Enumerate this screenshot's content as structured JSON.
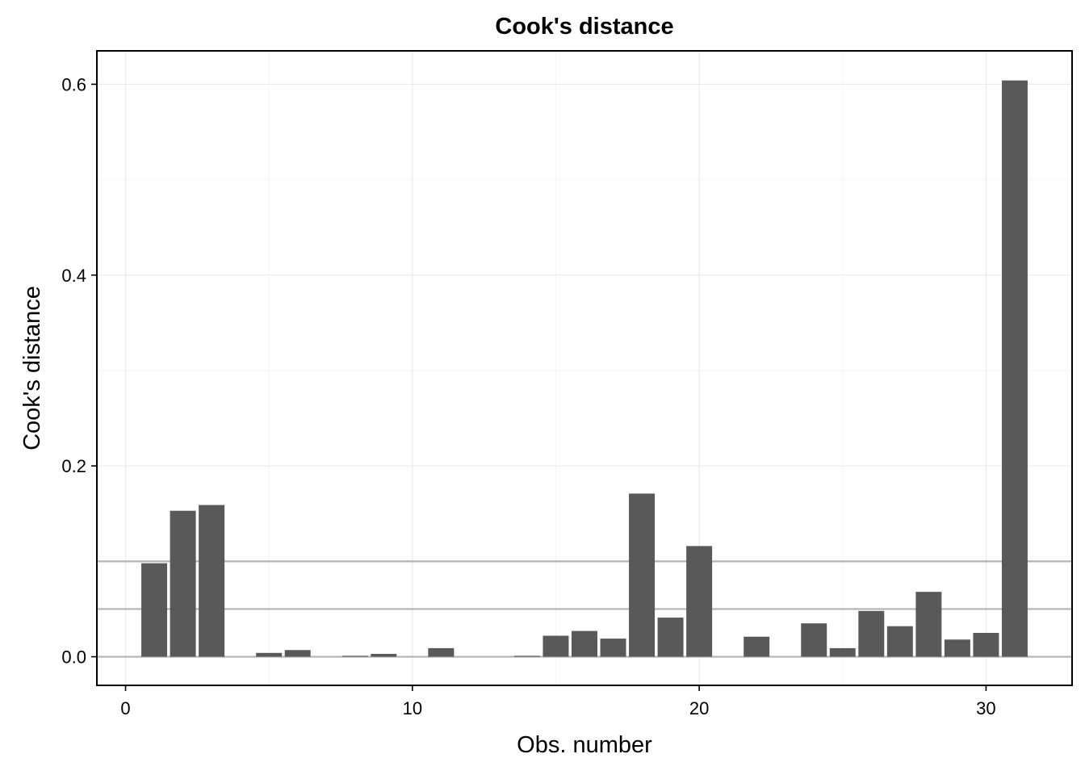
{
  "chart_data": {
    "type": "bar",
    "title": "Cook's distance",
    "xlabel": "Obs. number",
    "ylabel": "Cook's distance",
    "x": [
      1,
      2,
      3,
      4,
      5,
      6,
      7,
      8,
      9,
      10,
      11,
      12,
      13,
      14,
      15,
      16,
      17,
      18,
      19,
      20,
      21,
      22,
      23,
      24,
      25,
      26,
      27,
      28,
      29,
      30,
      31
    ],
    "values": [
      0.098,
      0.153,
      0.159,
      0.0,
      0.004,
      0.007,
      0.0,
      0.001,
      0.003,
      0.0,
      0.009,
      0.0,
      0.0,
      0.001,
      0.022,
      0.027,
      0.019,
      0.171,
      0.041,
      0.116,
      0.0,
      0.021,
      0.0,
      0.035,
      0.009,
      0.048,
      0.032,
      0.068,
      0.018,
      0.025,
      0.604
    ],
    "reference_lines": [
      0.0,
      0.05,
      0.1
    ],
    "xlim": [
      -1,
      33
    ],
    "ylim": [
      -0.03,
      0.635
    ],
    "xticks": [
      0,
      10,
      20,
      30
    ],
    "yticks": [
      0.0,
      0.2,
      0.4,
      0.6
    ],
    "xtick_labels": [
      "0",
      "10",
      "20",
      "30"
    ],
    "ytick_labels": [
      "0.0",
      "0.2",
      "0.4",
      "0.6"
    ],
    "grid": true,
    "colors": {
      "bar": "#595959",
      "reference_line": "#b3b3b3",
      "grid_major": "#ebebeb",
      "grid_minor": "#f5f5f5",
      "panel_border": "#000000"
    }
  }
}
